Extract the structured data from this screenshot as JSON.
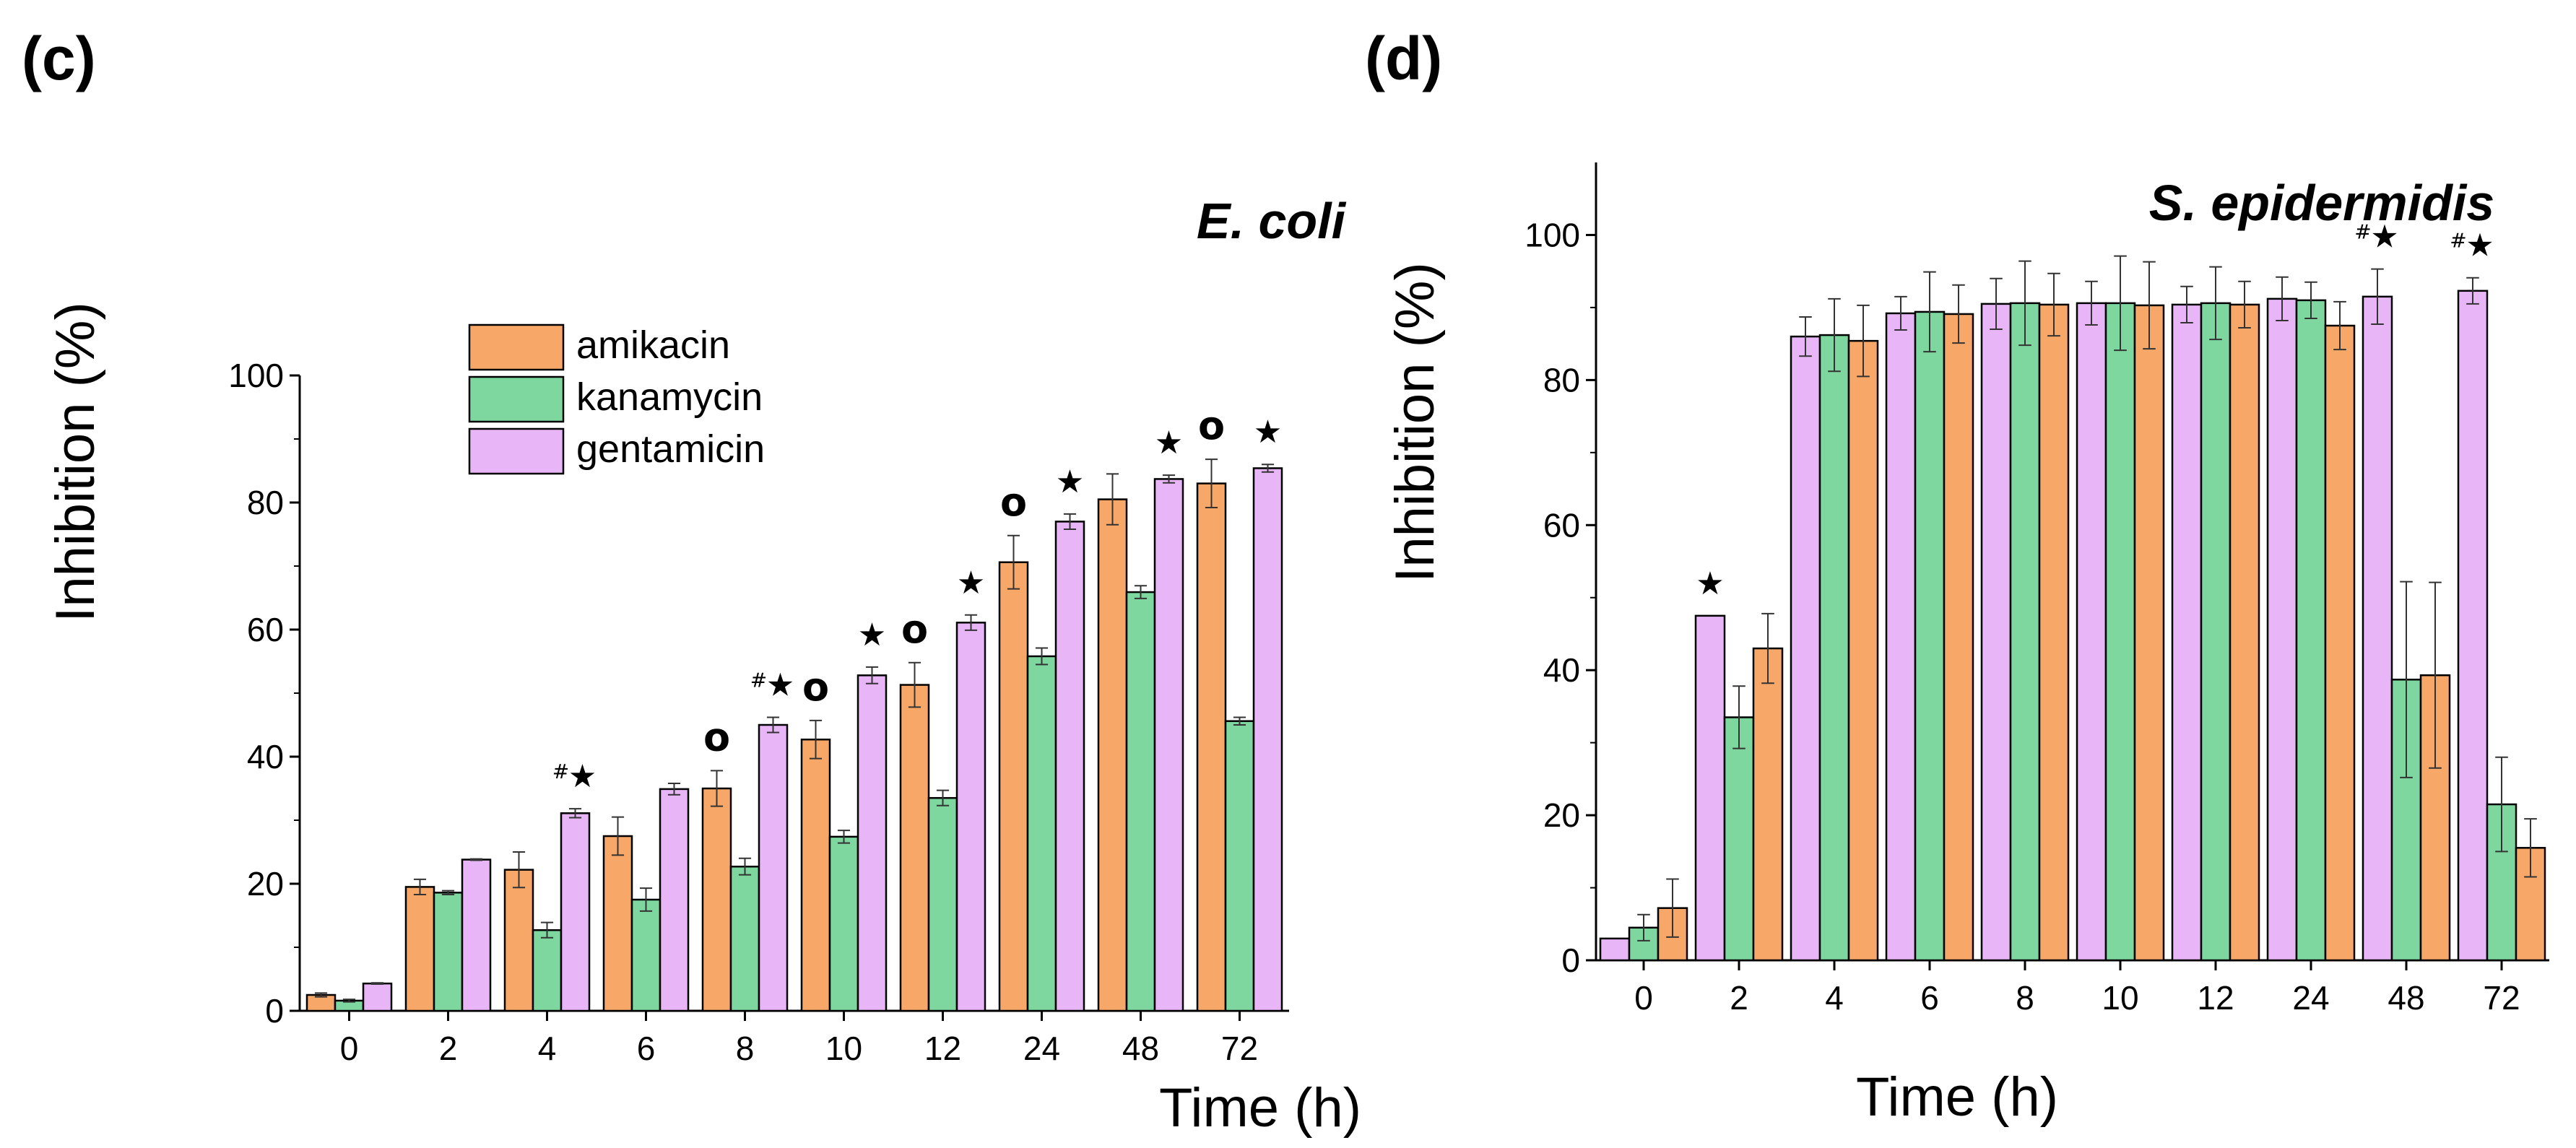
{
  "colors": {
    "amikacin": "#F7A868",
    "kanamycin": "#7ED79F",
    "gentamicin": "#E8B6F7",
    "stroke": "#000000"
  },
  "chart_data": [
    {
      "panel": "(c)",
      "type": "bar",
      "title": "E. coli",
      "xlabel": "Time (h)",
      "ylabel": "Inhibition (%)",
      "ylim": [
        0,
        100
      ],
      "yticks": [
        0,
        20,
        40,
        60,
        80,
        100
      ],
      "grid": false,
      "legend_position": "top-left",
      "legend": [
        "amikacin",
        "kanamycin",
        "gentamicin"
      ],
      "categories": [
        "0",
        "2",
        "4",
        "6",
        "8",
        "10",
        "12",
        "24",
        "48",
        "72"
      ],
      "series": [
        {
          "name": "amikacin",
          "color_key": "amikacin",
          "values": [
            2.5,
            19.5,
            22.2,
            27.5,
            35.0,
            42.7,
            51.3,
            70.6,
            80.5,
            83.0
          ],
          "errors": [
            0.3,
            1.2,
            2.8,
            3.0,
            2.8,
            3.0,
            3.5,
            4.2,
            4.0,
            3.8
          ]
        },
        {
          "name": "kanamycin",
          "color_key": "kanamycin",
          "values": [
            1.6,
            18.6,
            12.7,
            17.5,
            22.7,
            27.4,
            33.5,
            55.8,
            65.9,
            45.6
          ],
          "errors": [
            0.2,
            0.3,
            1.2,
            1.8,
            1.3,
            1.0,
            1.2,
            1.3,
            1.0,
            0.6
          ]
        },
        {
          "name": "gentamicin",
          "color_key": "gentamicin",
          "values": [
            4.3,
            23.8,
            31.1,
            34.9,
            45.0,
            52.8,
            61.1,
            77.0,
            83.7,
            85.4
          ],
          "errors": [
            0.1,
            0.1,
            0.7,
            0.9,
            1.2,
            1.3,
            1.2,
            1.2,
            0.6,
            0.6
          ]
        }
      ],
      "annotations": [
        {
          "category": "4",
          "text": "★",
          "hash": "#"
        },
        {
          "category": "8",
          "text": "★",
          "hash": "#",
          "circle": "o"
        },
        {
          "category": "10",
          "text": "★",
          "circle": "o"
        },
        {
          "category": "12",
          "text": "★",
          "circle": "o"
        },
        {
          "category": "24",
          "text": "★",
          "circle": "o"
        },
        {
          "category": "48",
          "text": "★"
        },
        {
          "category": "72",
          "text": "★",
          "circle": "o"
        }
      ]
    },
    {
      "panel": "(d)",
      "type": "bar",
      "title": "S. epidermidis",
      "xlabel": "Time (h)",
      "ylabel": "Inhibition (%)",
      "ylim": [
        0,
        110
      ],
      "yticks": [
        0,
        20,
        40,
        60,
        80,
        100
      ],
      "grid": false,
      "categories": [
        "0",
        "2",
        "4",
        "6",
        "8",
        "10",
        "12",
        "24",
        "48",
        "72"
      ],
      "series": [
        {
          "name": "gentamicin",
          "color_key": "gentamicin",
          "values": [
            3.0,
            47.5,
            86.0,
            89.2,
            90.5,
            90.6,
            90.4,
            91.2,
            91.5,
            92.3
          ],
          "errors": [
            0.0,
            0.0,
            2.7,
            2.3,
            3.5,
            3.0,
            2.5,
            3.0,
            3.8,
            1.8
          ]
        },
        {
          "name": "kanamycin",
          "color_key": "kanamycin",
          "values": [
            4.5,
            33.5,
            86.2,
            89.4,
            90.6,
            90.6,
            90.6,
            91.0,
            38.7,
            21.5
          ],
          "errors": [
            1.8,
            4.3,
            5.0,
            5.5,
            5.8,
            6.5,
            5.0,
            2.5,
            13.5,
            6.5
          ]
        },
        {
          "name": "amikacin",
          "color_key": "amikacin",
          "values": [
            7.2,
            43.0,
            85.4,
            89.1,
            90.4,
            90.3,
            90.4,
            87.5,
            39.3,
            15.5
          ],
          "errors": [
            4.0,
            4.8,
            4.9,
            4.0,
            4.3,
            6.0,
            3.2,
            3.3,
            12.8,
            4.0
          ]
        }
      ],
      "annotations": [
        {
          "category": "2",
          "text": "★"
        },
        {
          "category": "48",
          "text": "★",
          "hash": "#"
        },
        {
          "category": "72",
          "text": "★",
          "hash": "#"
        }
      ]
    }
  ]
}
